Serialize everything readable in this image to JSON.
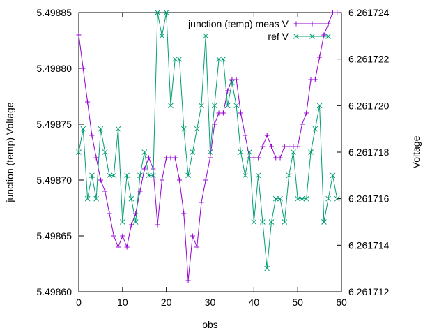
{
  "chart_data": {
    "type": "line",
    "title": "",
    "xlabel": "obs",
    "ylabel_left": "junction (temp) Voltage",
    "ylabel_right": "Voltage",
    "xlim": [
      0,
      60
    ],
    "ylim_left": [
      5.4986,
      5.49885
    ],
    "ylim_right": [
      6.261712,
      6.261724
    ],
    "grid": false,
    "legend_position": "top-right",
    "x_ticks": [
      0,
      10,
      20,
      30,
      40,
      50,
      60
    ],
    "x_tick_labels": [
      "0",
      "10",
      "20",
      "30",
      "40",
      "50",
      "60"
    ],
    "y_left_ticks": [
      5.4986,
      5.49865,
      5.4987,
      5.49875,
      5.4988,
      5.49885
    ],
    "y_left_tick_labels": [
      "5.49860",
      "5.49865",
      "5.49870",
      "5.49875",
      "5.49880",
      "5.49885"
    ],
    "y_right_ticks": [
      6.261712,
      6.261714,
      6.261716,
      6.261718,
      6.26172,
      6.261722,
      6.261724
    ],
    "y_right_tick_labels": [
      "6.261712",
      "6.261714",
      "6.261716",
      "6.261718",
      "6.261720",
      "6.261722",
      "6.261724"
    ],
    "series": [
      {
        "name": "junction (temp) meas V",
        "axis": "left",
        "color": "#9400d3",
        "marker": "plus",
        "x": [
          0,
          1,
          2,
          3,
          4,
          5,
          6,
          7,
          8,
          9,
          10,
          11,
          12,
          13,
          14,
          15,
          16,
          17,
          18,
          19,
          20,
          21,
          22,
          23,
          24,
          25,
          26,
          27,
          28,
          29,
          30,
          31,
          32,
          33,
          34,
          35,
          36,
          37,
          38,
          39,
          40,
          41,
          42,
          43,
          44,
          45,
          46,
          47,
          48,
          49,
          50,
          51,
          52,
          53,
          54,
          55,
          56,
          57,
          58,
          59
        ],
        "y": [
          5.49883,
          5.4988,
          5.49877,
          5.49874,
          5.49872,
          5.4987,
          5.49869,
          5.49867,
          5.49865,
          5.49864,
          5.49865,
          5.49864,
          5.49866,
          5.49867,
          5.49869,
          5.49871,
          5.49872,
          5.49871,
          5.49866,
          5.4987,
          5.49872,
          5.49872,
          5.49872,
          5.4987,
          5.49867,
          5.49861,
          5.49865,
          5.49864,
          5.49868,
          5.4987,
          5.49872,
          5.49875,
          5.49876,
          5.49876,
          5.49878,
          5.49879,
          5.49879,
          5.49876,
          5.49874,
          5.49872,
          5.49872,
          5.49872,
          5.49873,
          5.49874,
          5.49873,
          5.49872,
          5.49872,
          5.49873,
          5.49873,
          5.49873,
          5.49873,
          5.49875,
          5.49876,
          5.49879,
          5.49879,
          5.49881,
          5.49883,
          5.49884,
          5.49885,
          5.49885
        ]
      },
      {
        "name": "ref V",
        "axis": "right",
        "color": "#009e73",
        "marker": "cross",
        "x": [
          0,
          1,
          2,
          3,
          4,
          5,
          6,
          7,
          8,
          9,
          10,
          11,
          12,
          13,
          14,
          15,
          16,
          17,
          18,
          19,
          20,
          21,
          22,
          23,
          24,
          25,
          26,
          27,
          28,
          29,
          30,
          31,
          32,
          33,
          34,
          35,
          36,
          37,
          38,
          39,
          40,
          41,
          42,
          43,
          44,
          45,
          46,
          47,
          48,
          49,
          50,
          51,
          52,
          53,
          54,
          55,
          56,
          57,
          58,
          59
        ],
        "y": [
          6.261718,
          6.261719,
          6.261716,
          6.261717,
          6.261716,
          6.261719,
          6.261718,
          6.261717,
          6.261717,
          6.261719,
          6.261715,
          6.261717,
          6.261716,
          6.261715,
          6.261717,
          6.261718,
          6.261717,
          6.261717,
          6.261724,
          6.261723,
          6.261724,
          6.26172,
          6.261722,
          6.261722,
          6.261719,
          6.261717,
          6.261718,
          6.261719,
          6.26172,
          6.261723,
          6.261718,
          6.26172,
          6.261722,
          6.261722,
          6.26172,
          6.261721,
          6.26172,
          6.261718,
          6.261717,
          6.261718,
          6.261715,
          6.261717,
          6.261715,
          6.261713,
          6.261715,
          6.261716,
          6.261716,
          6.261715,
          6.261717,
          6.261718,
          6.261716,
          6.261716,
          6.261716,
          6.261718,
          6.261719,
          6.26172,
          6.261715,
          6.261716,
          6.261717,
          6.261716
        ]
      }
    ]
  }
}
